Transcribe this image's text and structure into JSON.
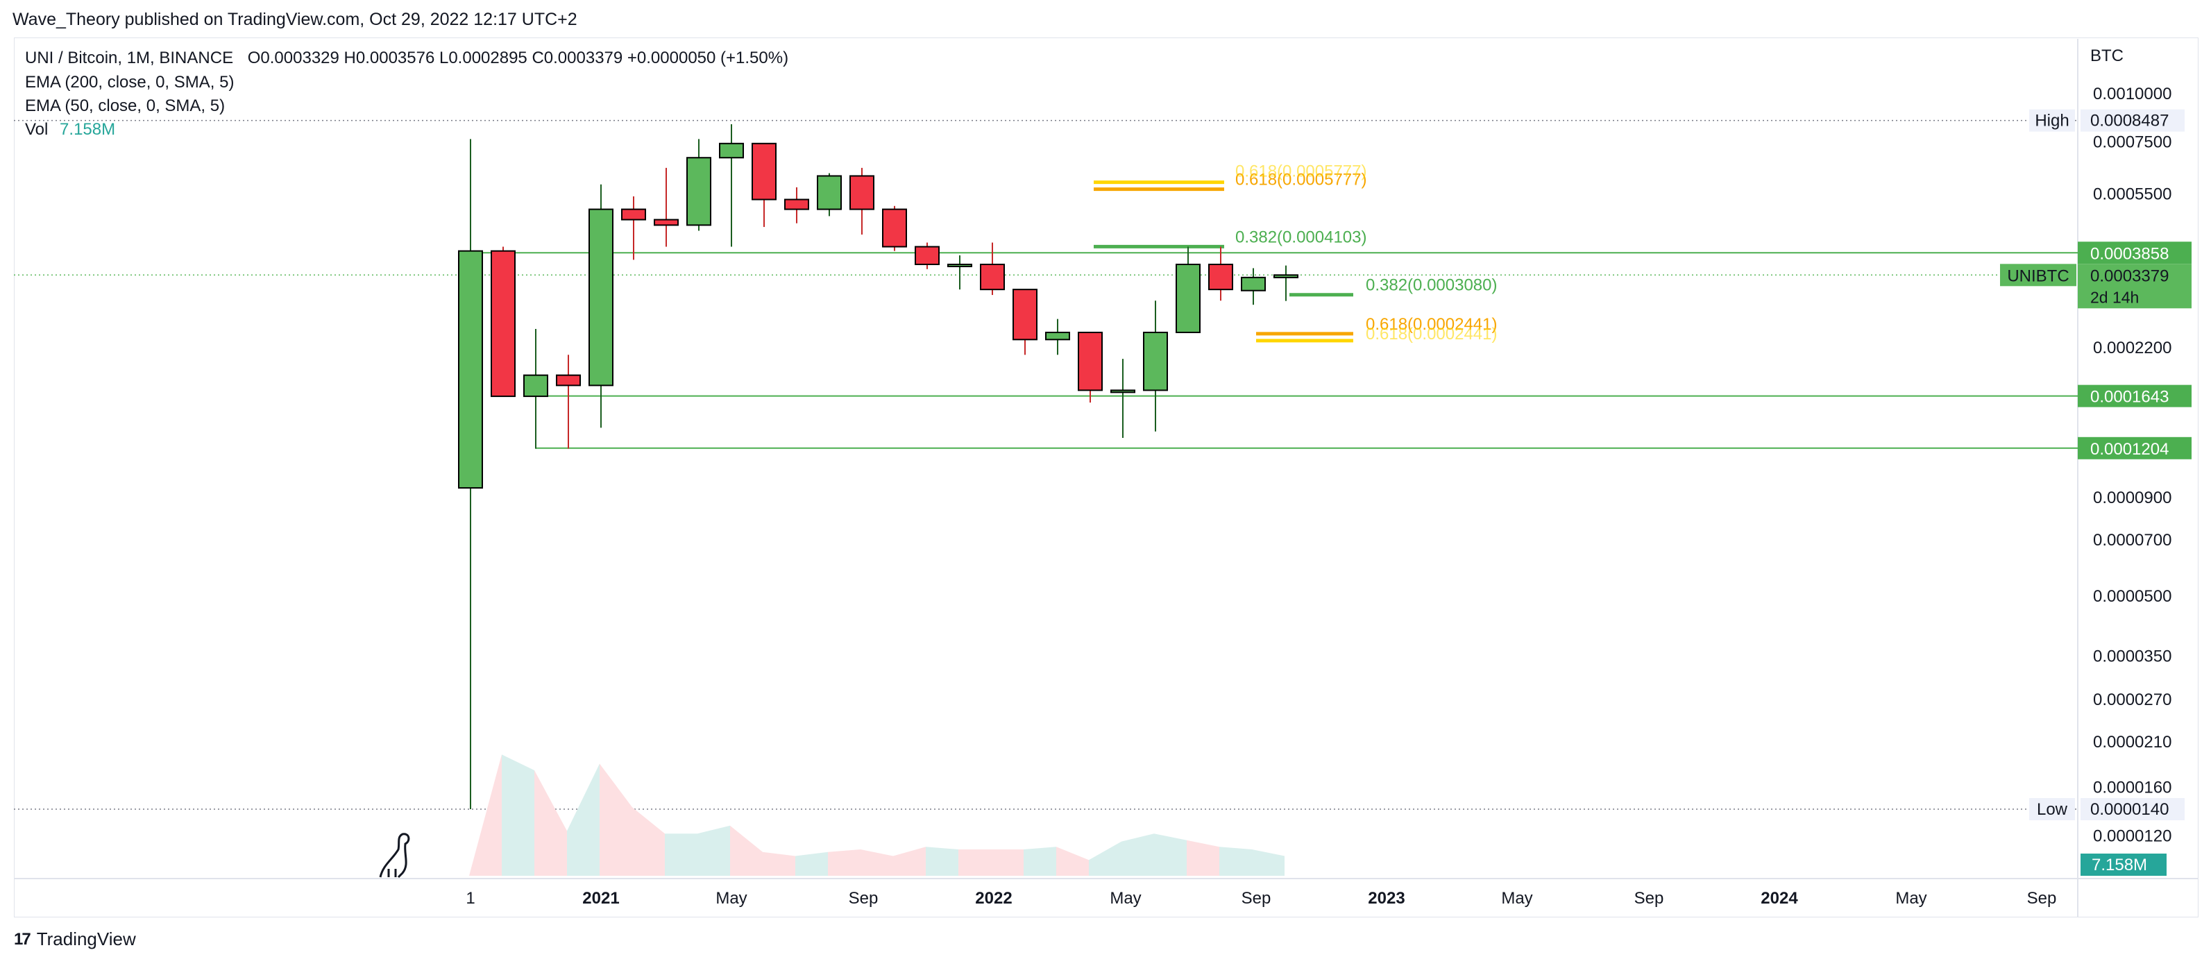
{
  "header": {
    "published": "Wave_Theory published on TradingView.com, Oct 29, 2022 12:17 UTC+2"
  },
  "legend": {
    "symbol_line": "UNI / Bitcoin, 1M, BINANCE",
    "ohlc": "O0.0003329  H0.0003576  L0.0002895  C0.0003379  +0.0000050 (+1.50%)",
    "ema200": "EMA (200, close, 0, SMA, 5)",
    "ema50": "EMA (50, close, 0, SMA, 5)",
    "vol_label": "Vol",
    "vol_value": "7.158M"
  },
  "footer": {
    "brand": "TradingView",
    "logo": "17"
  },
  "colors": {
    "up": "#5cb85c",
    "down": "#f23645",
    "fib_green": "#4caf50",
    "fib_orange": "#f7a600",
    "fib_yellow": "#ffd600",
    "support": "#4caf50",
    "vol_up": "#d9efed",
    "vol_down": "#fde0e2"
  },
  "chart_data": {
    "type": "candlestick",
    "scale": "log",
    "currency": "BTC",
    "x_ticks": [
      "1",
      "2021",
      "May",
      "Sep",
      "2022",
      "May",
      "Sep",
      "2023",
      "May",
      "Sep",
      "2024",
      "May",
      "Sep"
    ],
    "y_ticks": [
      "0.0010000",
      "0.0007500",
      "0.0005500",
      "0.0002200",
      "0.0000900",
      "0.0000700",
      "0.0000500",
      "0.0000350",
      "0.0000270",
      "0.0000210",
      "0.0000160",
      "0.0000120"
    ],
    "y_tick_values": [
      0.001,
      0.00075,
      0.00055,
      0.00022,
      9e-05,
      7e-05,
      5e-05,
      3.5e-05,
      2.7e-05,
      2.1e-05,
      1.6e-05,
      1.2e-05
    ],
    "candles": [
      {
        "o": 9.5e-05,
        "h": 0.00076,
        "l": 1.4e-05,
        "c": 0.00039
      },
      {
        "o": 0.00039,
        "h": 0.0004,
        "l": 0.000164,
        "c": 0.000164
      },
      {
        "o": 0.000164,
        "h": 0.000245,
        "l": 0.00012,
        "c": 0.000186
      },
      {
        "o": 0.000186,
        "h": 0.00021,
        "l": 0.00012,
        "c": 0.000175
      },
      {
        "o": 0.000175,
        "h": 0.00058,
        "l": 0.000136,
        "c": 0.0005
      },
      {
        "o": 0.0005,
        "h": 0.00054,
        "l": 0.00037,
        "c": 0.00047
      },
      {
        "o": 0.00047,
        "h": 0.00064,
        "l": 0.0004,
        "c": 0.000455
      },
      {
        "o": 0.000455,
        "h": 0.00076,
        "l": 0.00044,
        "c": 0.00068
      },
      {
        "o": 0.00068,
        "h": 0.00083,
        "l": 0.0004,
        "c": 0.00074
      },
      {
        "o": 0.00074,
        "h": 0.00074,
        "l": 0.00045,
        "c": 0.00053
      },
      {
        "o": 0.00053,
        "h": 0.00057,
        "l": 0.00046,
        "c": 0.0005
      },
      {
        "o": 0.0005,
        "h": 0.00062,
        "l": 0.00048,
        "c": 0.00061
      },
      {
        "o": 0.00061,
        "h": 0.00064,
        "l": 0.00043,
        "c": 0.0005
      },
      {
        "o": 0.0005,
        "h": 0.00051,
        "l": 0.00039,
        "c": 0.0004
      },
      {
        "o": 0.0004,
        "h": 0.00041,
        "l": 0.00035,
        "c": 0.00036
      },
      {
        "o": 0.00036,
        "h": 0.00038,
        "l": 0.00031,
        "c": 0.00036
      },
      {
        "o": 0.00036,
        "h": 0.00041,
        "l": 0.0003,
        "c": 0.00031
      },
      {
        "o": 0.00031,
        "h": 0.00031,
        "l": 0.00021,
        "c": 0.00023
      },
      {
        "o": 0.00023,
        "h": 0.00026,
        "l": 0.00021,
        "c": 0.00024
      },
      {
        "o": 0.00024,
        "h": 0.00024,
        "l": 0.000158,
        "c": 0.00017
      },
      {
        "o": 0.00017,
        "h": 0.000205,
        "l": 0.000128,
        "c": 0.00017
      },
      {
        "o": 0.00017,
        "h": 0.00029,
        "l": 0.000133,
        "c": 0.00024
      },
      {
        "o": 0.00024,
        "h": 0.0004,
        "l": 0.00024,
        "c": 0.00036
      },
      {
        "o": 0.00036,
        "h": 0.0004,
        "l": 0.00029,
        "c": 0.00031
      },
      {
        "o": 0.000308,
        "h": 0.000352,
        "l": 0.000283,
        "c": 0.000333
      },
      {
        "o": 0.0003329,
        "h": 0.0003576,
        "l": 0.0002895,
        "c": 0.0003379
      }
    ],
    "volume": [
      0.0,
      0.92,
      0.8,
      0.34,
      0.85,
      0.52,
      0.32,
      0.32,
      0.38,
      0.18,
      0.15,
      0.18,
      0.2,
      0.15,
      0.22,
      0.2,
      0.2,
      0.2,
      0.22,
      0.12,
      0.26,
      0.32,
      0.27,
      0.22,
      0.2,
      0.15
    ],
    "volume_last": "7.158M",
    "high_marker": {
      "label": "High",
      "value": 0.0008487,
      "text": "0.0008487"
    },
    "low_marker": {
      "label": "Low",
      "value": 1.4e-05,
      "text": "0.0000140"
    },
    "current_price": {
      "symbol": "UNIBTC",
      "value": 0.0003379,
      "text": "0.0003379",
      "countdown": "2d 14h"
    },
    "levels": [
      {
        "value": 0.0003858,
        "text": "0.0003858"
      },
      {
        "value": 0.0001643,
        "text": "0.0001643"
      },
      {
        "value": 0.0001204,
        "text": "0.0001204"
      }
    ],
    "fib_labels": [
      {
        "text": "0.382(0.0004103)",
        "value": 0.0004103,
        "color": "green"
      },
      {
        "text": "0.618(0.0005777)",
        "value": 0.0005777,
        "color": "orange"
      },
      {
        "text": "0.382(0.0003080)",
        "value": 0.000308,
        "color": "green"
      },
      {
        "text": "0.618(0.0002441)",
        "value": 0.0002441,
        "color": "orange"
      }
    ],
    "fib_ghosts": [
      "0.618(0.0005777)",
      "0.618(0.0002441)"
    ]
  }
}
